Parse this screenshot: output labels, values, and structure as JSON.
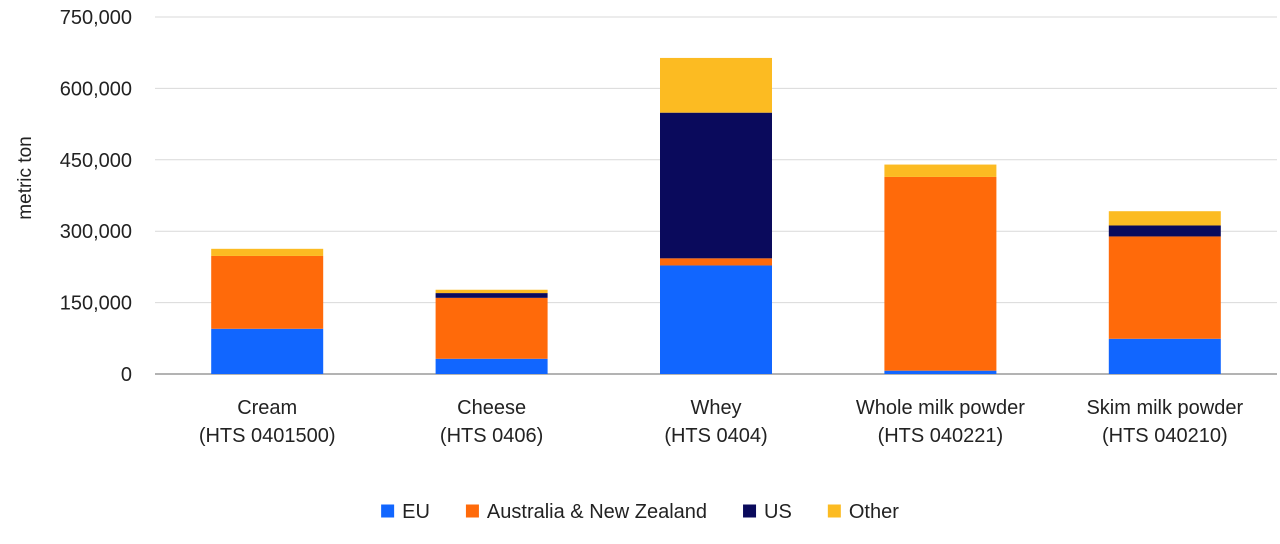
{
  "chart_data": {
    "type": "bar",
    "stacked": true,
    "title": "",
    "xlabel": "",
    "ylabel": "metric ton",
    "ylim": [
      0,
      750000
    ],
    "yticks": [
      0,
      150000,
      300000,
      450000,
      600000,
      750000
    ],
    "ytick_labels": [
      "0",
      "150,000",
      "300,000",
      "450,000",
      "600,000",
      "750,000"
    ],
    "grid": true,
    "legend_position": "bottom",
    "categories": [
      [
        "Cream",
        "(HTS 0401500)"
      ],
      [
        "Cheese",
        "(HTS 0406)"
      ],
      [
        "Whey",
        "(HTS 0404)"
      ],
      [
        "Whole milk powder",
        "(HTS 040221)"
      ],
      [
        "Skim milk powder",
        "(HTS 040210)"
      ]
    ],
    "series": [
      {
        "name": "EU",
        "color": "#1166ff",
        "values": [
          95000,
          32000,
          228000,
          7000,
          74000
        ]
      },
      {
        "name": "Australia & New Zealand",
        "color": "#ff6a0a",
        "values": [
          153000,
          128000,
          15000,
          407000,
          215000
        ]
      },
      {
        "name": "US",
        "color": "#0a0a5c",
        "values": [
          0,
          10000,
          306000,
          0,
          23000
        ]
      },
      {
        "name": "Other",
        "color": "#fcbb22",
        "values": [
          15000,
          7000,
          115000,
          26000,
          30000
        ]
      }
    ]
  }
}
